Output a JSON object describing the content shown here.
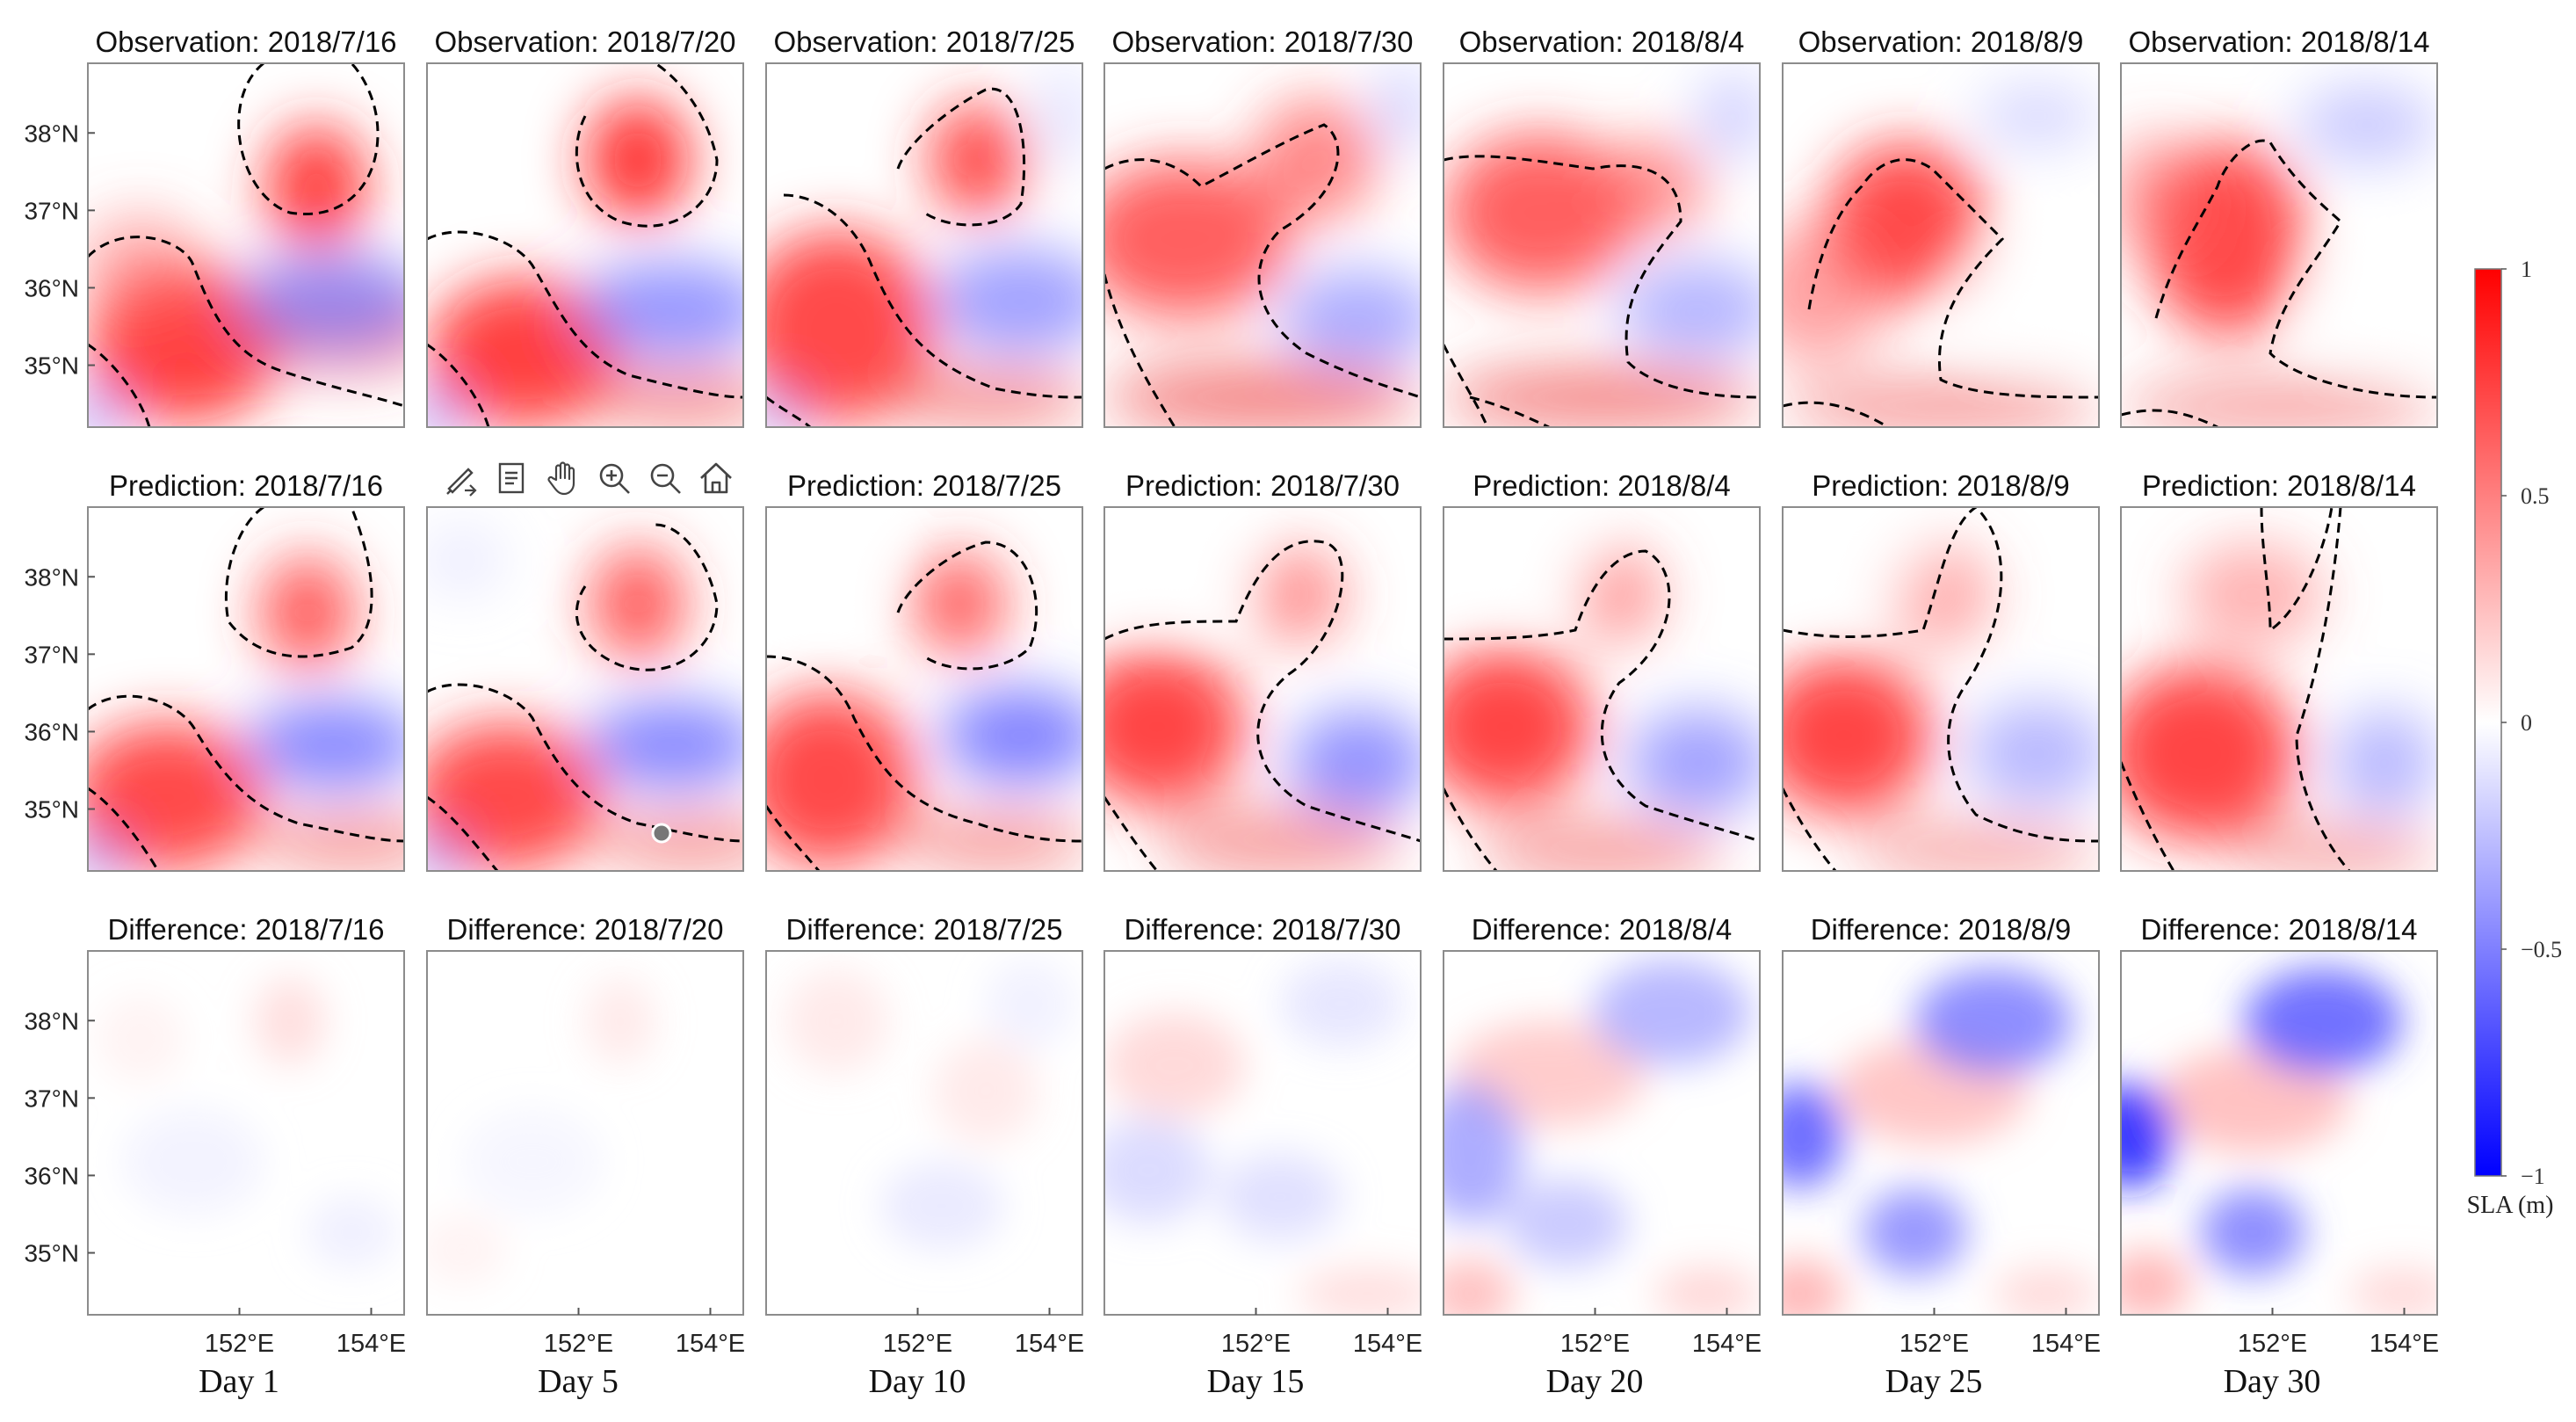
{
  "chart_data": {
    "type": "heatmap",
    "rows": [
      {
        "name": "observation",
        "title_prefix": "Observation: "
      },
      {
        "name": "prediction",
        "title_prefix": "Prediction: "
      },
      {
        "name": "difference",
        "title_prefix": "Difference: "
      }
    ],
    "dates": [
      "2018/7/16",
      "2018/7/20",
      "2018/7/25",
      "2018/7/30",
      "2018/8/4",
      "2018/8/9",
      "2018/8/14"
    ],
    "day_labels": [
      "Day 1",
      "Day 5",
      "Day 10",
      "Day 15",
      "Day 20",
      "Day 25",
      "Day 30"
    ],
    "y_ticks": [
      "38°N",
      "37°N",
      "36°N",
      "35°N"
    ],
    "y_tick_values": [
      38,
      37,
      36,
      35
    ],
    "x_ticks": [
      "152°E",
      "154°E"
    ],
    "x_tick_values": [
      152,
      154
    ],
    "x_range": [
      149.7,
      154.5
    ],
    "y_range": [
      34.2,
      38.9
    ],
    "colorbar": {
      "label": "SLA (m)",
      "ticks": [
        "1",
        "0.5",
        "0",
        "−0.5",
        "−1"
      ],
      "tick_values": [
        1,
        0.5,
        0,
        -0.5,
        -1
      ],
      "range": [
        -1,
        1
      ],
      "low_color": "#0000ff",
      "mid_color": "#ffffff",
      "high_color": "#ff0000"
    },
    "contour_level": 0.25
  }
}
